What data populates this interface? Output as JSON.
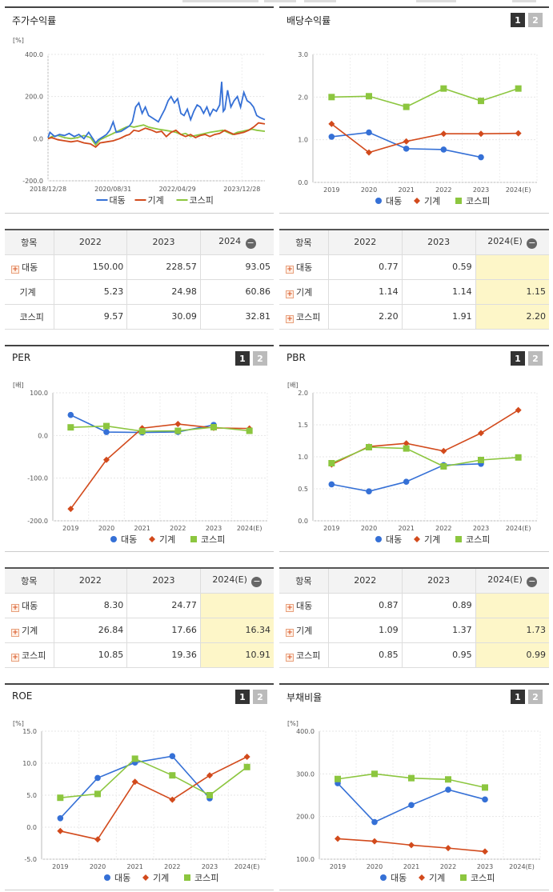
{
  "colors": {
    "daedong": "#3570d6",
    "machinery": "#d24a1c",
    "kospi": "#8cc63f"
  },
  "legend": [
    "대동",
    "기계",
    "코스피"
  ],
  "stock_return": {
    "title": "주가수익률",
    "unit": "[%]",
    "chart_data": {
      "type": "line",
      "title": "주가수익률",
      "ylabel": "[%]",
      "ylim": [
        -200,
        400
      ],
      "yticks": [
        "400.0",
        "200.0",
        "0.0",
        "-200.0"
      ],
      "xticks": [
        "2018/12/28",
        "2020/08/31",
        "2022/04/29",
        "2023/12/28"
      ],
      "x_range": [
        "2018-12-28",
        "2024-07-31"
      ],
      "series": [
        {
          "name": "대동",
          "color": "#3570d6",
          "x": [
            "2018-12-28",
            "2019-01-15",
            "2019-03-01",
            "2019-04-15",
            "2019-06-01",
            "2019-07-15",
            "2019-09-01",
            "2019-10-15",
            "2019-12-01",
            "2020-01-15",
            "2020-03-20",
            "2020-04-15",
            "2020-06-01",
            "2020-07-01",
            "2020-08-01",
            "2020-09-01",
            "2020-10-01",
            "2020-11-15",
            "2021-01-01",
            "2021-02-01",
            "2021-03-01",
            "2021-04-01",
            "2021-05-01",
            "2021-06-01",
            "2021-07-01",
            "2021-08-01",
            "2021-09-01",
            "2021-10-01",
            "2021-11-01",
            "2021-12-01",
            "2022-01-01",
            "2022-02-01",
            "2022-03-01",
            "2022-04-01",
            "2022-05-01",
            "2022-06-01",
            "2022-07-01",
            "2022-08-01",
            "2022-09-01",
            "2022-10-01",
            "2022-11-01",
            "2022-12-01",
            "2023-01-01",
            "2023-02-01",
            "2023-03-01",
            "2023-04-01",
            "2023-05-01",
            "2023-06-01",
            "2023-06-20",
            "2023-07-05",
            "2023-07-20",
            "2023-08-15",
            "2023-09-15",
            "2023-10-15",
            "2023-11-15",
            "2023-12-15",
            "2024-01-15",
            "2024-02-15",
            "2024-03-15",
            "2024-04-15",
            "2024-05-15",
            "2024-06-15",
            "2024-07-31"
          ],
          "values": [
            5,
            30,
            10,
            20,
            15,
            25,
            10,
            20,
            0,
            30,
            -20,
            -5,
            10,
            20,
            40,
            80,
            30,
            35,
            50,
            60,
            80,
            150,
            170,
            120,
            150,
            110,
            100,
            90,
            80,
            110,
            140,
            180,
            200,
            170,
            190,
            120,
            110,
            140,
            90,
            130,
            160,
            150,
            120,
            150,
            110,
            140,
            130,
            160,
            270,
            130,
            140,
            230,
            150,
            180,
            200,
            150,
            220,
            180,
            170,
            150,
            110,
            100,
            90
          ]
        },
        {
          "name": "기계",
          "color": "#d24a1c",
          "x": [
            "2018-12-28",
            "2019-02-01",
            "2019-04-01",
            "2019-06-01",
            "2019-08-01",
            "2019-10-01",
            "2019-12-01",
            "2020-02-01",
            "2020-03-20",
            "2020-05-01",
            "2020-07-01",
            "2020-09-01",
            "2020-11-01",
            "2021-01-01",
            "2021-02-01",
            "2021-03-15",
            "2021-05-01",
            "2021-07-01",
            "2021-08-01",
            "2021-09-01",
            "2021-10-15",
            "2021-12-01",
            "2022-01-15",
            "2022-03-01",
            "2022-04-15",
            "2022-06-01",
            "2022-07-15",
            "2022-09-01",
            "2022-10-15",
            "2022-12-01",
            "2023-01-15",
            "2023-03-01",
            "2023-04-15",
            "2023-06-01",
            "2023-07-20",
            "2023-09-01",
            "2023-10-15",
            "2023-12-01",
            "2024-01-15",
            "2024-03-01",
            "2024-04-15",
            "2024-06-01",
            "2024-07-31"
          ],
          "values": [
            0,
            5,
            -5,
            -10,
            -15,
            -10,
            -20,
            -25,
            -40,
            -20,
            -15,
            -10,
            0,
            15,
            20,
            40,
            35,
            50,
            45,
            40,
            30,
            35,
            10,
            30,
            40,
            20,
            10,
            20,
            5,
            15,
            20,
            10,
            20,
            25,
            40,
            30,
            20,
            25,
            30,
            40,
            55,
            75,
            70
          ]
        },
        {
          "name": "코스피",
          "color": "#8cc63f",
          "x": [
            "2018-12-28",
            "2019-02-01",
            "2019-04-01",
            "2019-06-01",
            "2019-08-01",
            "2019-10-01",
            "2019-12-01",
            "2020-02-01",
            "2020-03-20",
            "2020-05-01",
            "2020-07-01",
            "2020-09-01",
            "2020-11-01",
            "2021-01-01",
            "2021-02-01",
            "2021-03-15",
            "2021-05-01",
            "2021-06-15",
            "2021-08-01",
            "2021-09-15",
            "2021-11-01",
            "2022-01-01",
            "2022-03-01",
            "2022-04-15",
            "2022-06-01",
            "2022-07-15",
            "2022-09-01",
            "2022-10-15",
            "2022-12-01",
            "2023-01-15",
            "2023-03-01",
            "2023-05-01",
            "2023-07-01",
            "2023-08-15",
            "2023-10-01",
            "2023-11-15",
            "2024-01-01",
            "2024-02-15",
            "2024-04-01",
            "2024-05-15",
            "2024-07-31"
          ],
          "values": [
            0,
            10,
            15,
            5,
            0,
            5,
            15,
            5,
            -30,
            -5,
            10,
            25,
            40,
            55,
            60,
            55,
            60,
            65,
            55,
            50,
            45,
            40,
            35,
            30,
            20,
            25,
            10,
            15,
            20,
            25,
            30,
            35,
            40,
            30,
            20,
            30,
            35,
            40,
            45,
            40,
            35
          ]
        }
      ]
    }
  },
  "dividend": {
    "title": "배당수익률",
    "btn1": "1",
    "btn2": "2",
    "chart_data": {
      "type": "line",
      "title": "배당수익률",
      "ylim": [
        0,
        3
      ],
      "yticks": [
        "3.0",
        "2.0",
        "1.0",
        "0.0"
      ],
      "categories": [
        "2019",
        "2020",
        "2021",
        "2022",
        "2023",
        "2024(E)"
      ],
      "series": [
        {
          "name": "대동",
          "values": [
            1.07,
            1.17,
            0.79,
            0.77,
            0.59,
            null
          ]
        },
        {
          "name": "기계",
          "values": [
            1.37,
            0.7,
            0.96,
            1.14,
            1.14,
            1.15
          ]
        },
        {
          "name": "코스피",
          "values": [
            2.0,
            2.02,
            1.77,
            2.2,
            1.91,
            2.2
          ]
        }
      ]
    }
  },
  "per": {
    "title": "PER",
    "unit": "[배]",
    "btn1": "1",
    "btn2": "2",
    "chart_data": {
      "type": "line",
      "title": "PER",
      "ylabel": "[배]",
      "ylim": [
        -200,
        100
      ],
      "yticks": [
        "100.0",
        "0.0",
        "-100.0",
        "-200.0"
      ],
      "categories": [
        "2019",
        "2020",
        "2021",
        "2022",
        "2023",
        "2024(E)"
      ],
      "series": [
        {
          "name": "대동",
          "values": [
            48,
            8,
            7,
            8.3,
            24.77,
            null
          ]
        },
        {
          "name": "기계",
          "values": [
            -172,
            -57,
            17,
            26.84,
            17.66,
            16.34
          ]
        },
        {
          "name": "코스피",
          "values": [
            19,
            22,
            10,
            10.85,
            19.36,
            10.91
          ]
        }
      ]
    }
  },
  "pbr": {
    "title": "PBR",
    "unit": "[배]",
    "btn1": "1",
    "btn2": "2",
    "chart_data": {
      "type": "line",
      "title": "PBR",
      "ylabel": "[배]",
      "ylim": [
        0,
        2
      ],
      "yticks": [
        "2.0",
        "1.5",
        "1.0",
        "0.5",
        "0.0"
      ],
      "categories": [
        "2019",
        "2020",
        "2021",
        "2022",
        "2023",
        "2024(E)"
      ],
      "series": [
        {
          "name": "대동",
          "values": [
            0.57,
            0.46,
            0.61,
            0.87,
            0.89,
            null
          ]
        },
        {
          "name": "기계",
          "values": [
            0.88,
            1.16,
            1.21,
            1.09,
            1.37,
            1.73
          ]
        },
        {
          "name": "코스피",
          "values": [
            0.9,
            1.15,
            1.13,
            0.85,
            0.95,
            0.99
          ]
        }
      ]
    }
  },
  "roe": {
    "title": "ROE",
    "unit": "[%]",
    "btn1": "1",
    "btn2": "2",
    "chart_data": {
      "type": "line",
      "title": "ROE",
      "ylabel": "[%]",
      "ylim": [
        -5,
        15
      ],
      "yticks": [
        "15.0",
        "10.0",
        "5.0",
        "0.0",
        "-5.0"
      ],
      "categories": [
        "2019",
        "2020",
        "2021",
        "2022",
        "2023",
        "2024(E)"
      ],
      "series": [
        {
          "name": "대동",
          "values": [
            1.4,
            7.7,
            10.1,
            11.1,
            4.5,
            null
          ]
        },
        {
          "name": "기계",
          "values": [
            -0.6,
            -1.9,
            7.1,
            4.3,
            8.1,
            11.0
          ]
        },
        {
          "name": "코스피",
          "values": [
            4.6,
            5.2,
            10.7,
            8.1,
            5.0,
            9.4
          ]
        }
      ]
    }
  },
  "debt": {
    "title": "부채비율",
    "unit": "[%]",
    "btn1": "1",
    "btn2": "2",
    "chart_data": {
      "type": "line",
      "title": "부채비율",
      "ylabel": "[%]",
      "ylim": [
        100,
        400
      ],
      "yticks": [
        "400.0",
        "300.0",
        "200.0",
        "100.0"
      ],
      "categories": [
        "2019",
        "2020",
        "2021",
        "2022",
        "2023",
        "2024(E)"
      ],
      "series": [
        {
          "name": "대동",
          "values": [
            278,
            187,
            227,
            263,
            240,
            null
          ]
        },
        {
          "name": "기계",
          "values": [
            148,
            142,
            133,
            126,
            118,
            null
          ]
        },
        {
          "name": "코스피",
          "values": [
            288,
            300,
            290,
            287,
            268,
            null
          ]
        }
      ]
    }
  },
  "tables": {
    "stock_return": {
      "headers": [
        "항목",
        "2022",
        "2023",
        "2024"
      ],
      "rows": [
        {
          "name": "대동",
          "v1": "150.00",
          "v2": "228.57",
          "v3": "93.05"
        },
        {
          "name": "기계",
          "v1": "5.23",
          "v2": "24.98",
          "v3": "60.86"
        },
        {
          "name": "코스피",
          "v1": "9.57",
          "v2": "30.09",
          "v3": "32.81"
        }
      ]
    },
    "dividend": {
      "headers": [
        "항목",
        "2022",
        "2023",
        "2024(E)"
      ],
      "rows": [
        {
          "name": "대동",
          "v1": "0.77",
          "v2": "0.59",
          "v3": ""
        },
        {
          "name": "기계",
          "v1": "1.14",
          "v2": "1.14",
          "v3": "1.15"
        },
        {
          "name": "코스피",
          "v1": "2.20",
          "v2": "1.91",
          "v3": "2.20"
        }
      ]
    },
    "per": {
      "headers": [
        "항목",
        "2022",
        "2023",
        "2024(E)"
      ],
      "rows": [
        {
          "name": "대동",
          "v1": "8.30",
          "v2": "24.77",
          "v3": ""
        },
        {
          "name": "기계",
          "v1": "26.84",
          "v2": "17.66",
          "v3": "16.34"
        },
        {
          "name": "코스피",
          "v1": "10.85",
          "v2": "19.36",
          "v3": "10.91"
        }
      ]
    },
    "pbr": {
      "headers": [
        "항목",
        "2022",
        "2023",
        "2024(E)"
      ],
      "rows": [
        {
          "name": "대동",
          "v1": "0.87",
          "v2": "0.89",
          "v3": ""
        },
        {
          "name": "기계",
          "v1": "1.09",
          "v2": "1.37",
          "v3": "1.73"
        },
        {
          "name": "코스피",
          "v1": "0.85",
          "v2": "0.95",
          "v3": "0.99"
        }
      ]
    }
  }
}
